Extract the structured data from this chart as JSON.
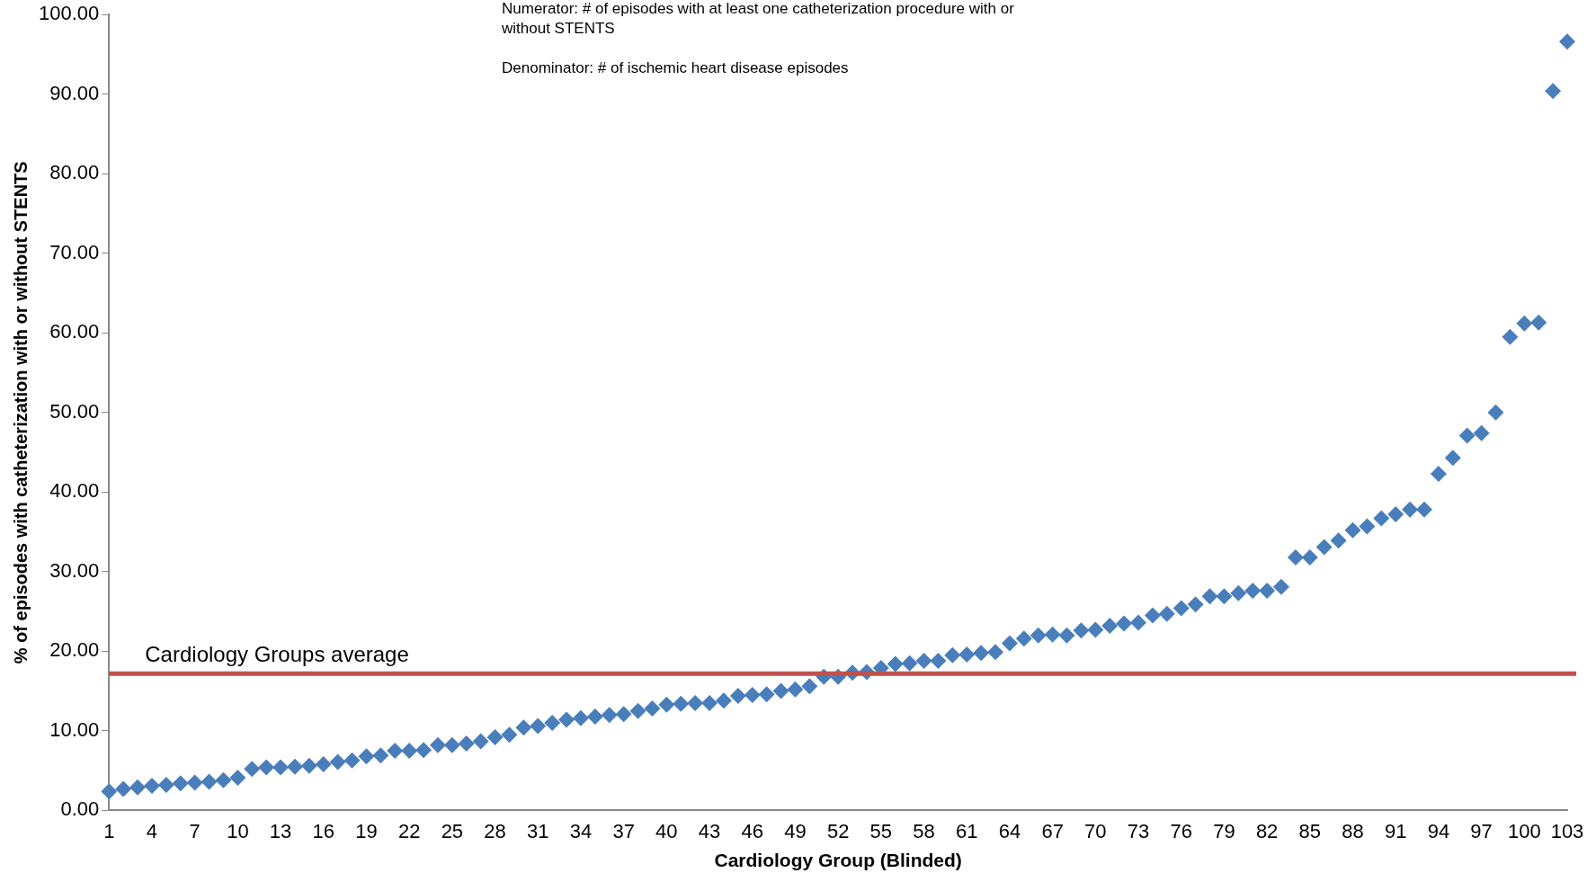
{
  "chart_data": {
    "type": "scatter",
    "xlabel": "Cardiology Group (Blinded)",
    "ylabel": "% of episodes with catheterization with or without STENTS",
    "annotations": [
      "Numerator: # of episodes with at least one catheterization procedure with or without STENTS",
      "Denominator: # of ischemic heart disease episodes"
    ],
    "categories": [
      "1",
      null,
      null,
      "4",
      null,
      null,
      "7",
      null,
      null,
      "10",
      null,
      null,
      "13",
      null,
      null,
      "16",
      null,
      null,
      "19",
      null,
      null,
      "22",
      null,
      null,
      "25",
      null,
      null,
      "28",
      null,
      null,
      "31",
      null,
      null,
      "34",
      null,
      null,
      "37",
      null,
      null,
      "40",
      null,
      null,
      "43",
      null,
      null,
      "46",
      null,
      null,
      "49",
      null,
      null,
      "52",
      null,
      null,
      "55",
      null,
      null,
      "58",
      null,
      null,
      "61",
      null,
      null,
      "64",
      null,
      null,
      "67",
      null,
      null,
      "70",
      null,
      null,
      "73",
      null,
      null,
      "76",
      null,
      null,
      "79",
      null,
      null,
      "82",
      null,
      null,
      "85",
      null,
      null,
      "88",
      null,
      null,
      "91",
      null,
      null,
      "94",
      null,
      null,
      "97",
      null,
      null,
      "100",
      null,
      null,
      "103"
    ],
    "series": [
      {
        "color": "#4a7ebb",
        "values": [
          2.4,
          2.7,
          2.9,
          3.1,
          3.2,
          3.4,
          3.5,
          3.6,
          3.8,
          4.1,
          5.2,
          5.4,
          5.4,
          5.5,
          5.6,
          5.8,
          6.1,
          6.3,
          6.8,
          6.9,
          7.5,
          7.5,
          7.6,
          8.2,
          8.2,
          8.4,
          8.7,
          9.2,
          9.5,
          10.4,
          10.6,
          11.0,
          11.4,
          11.6,
          11.8,
          12.0,
          12.1,
          12.5,
          12.8,
          13.3,
          13.4,
          13.5,
          13.5,
          13.8,
          14.4,
          14.5,
          14.6,
          15.0,
          15.2,
          15.6,
          16.8,
          16.8,
          17.3,
          17.4,
          17.9,
          18.4,
          18.5,
          18.8,
          18.8,
          19.5,
          19.6,
          19.8,
          19.9,
          21.0,
          21.6,
          22.0,
          22.1,
          22.0,
          22.6,
          22.7,
          23.2,
          23.5,
          23.6,
          24.5,
          24.7,
          25.4,
          25.9,
          26.9,
          26.9,
          27.3,
          27.6,
          27.6,
          28.1,
          31.8,
          31.8,
          33.1,
          33.9,
          35.2,
          35.7,
          36.7,
          37.2,
          37.8,
          37.8,
          42.3,
          44.3,
          47.1,
          47.4,
          50.0,
          59.5,
          61.2,
          61.3,
          90.4,
          96.6
        ]
      }
    ],
    "ylim": [
      0,
      100
    ],
    "yticks": [
      {
        "value": 0,
        "label": "0.00"
      },
      {
        "value": 10,
        "label": "10.00"
      },
      {
        "value": 20,
        "label": "20.00"
      },
      {
        "value": 30,
        "label": "30.00"
      },
      {
        "value": 40,
        "label": "40.00"
      },
      {
        "value": 50,
        "label": "50.00"
      },
      {
        "value": 60,
        "label": "60.00"
      },
      {
        "value": 70,
        "label": "70.00"
      },
      {
        "value": 80,
        "label": "80.00"
      },
      {
        "value": 90,
        "label": "90.00"
      },
      {
        "value": 100,
        "label": "100.00"
      }
    ],
    "ref_lines": [
      {
        "axis": "y",
        "value": 17.2,
        "label": "Cardiology Groups average",
        "color": "#c0504d"
      }
    ],
    "marker": "diamond",
    "grid": false,
    "legend": false
  }
}
